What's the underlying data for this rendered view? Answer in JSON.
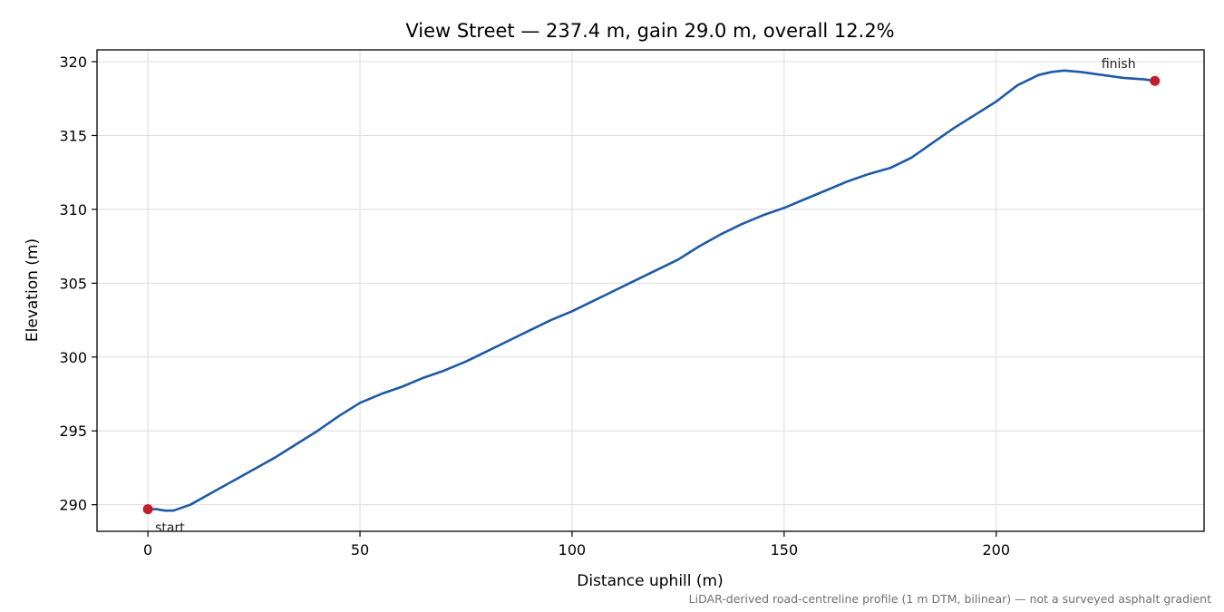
{
  "chart_data": {
    "type": "line",
    "title": "View Street — 237.4 m, gain 29.0 m, overall 12.2%",
    "xlabel": "Distance uphill (m)",
    "ylabel": "Elevation (m)",
    "footnote": "LiDAR-derived road-centreline profile (1 m DTM, bilinear) — not a surveyed asphalt gradient",
    "xlim": [
      -12,
      249
    ],
    "ylim": [
      288.2,
      320.8
    ],
    "xticks": [
      0,
      50,
      100,
      150,
      200
    ],
    "yticks": [
      290,
      295,
      300,
      305,
      310,
      315,
      320
    ],
    "grid": true,
    "line_color": "#1f5aa6",
    "marker_color": "#c0202b",
    "series": [
      {
        "x": [
          0,
          2,
          4,
          6,
          8,
          10,
          15,
          20,
          25,
          30,
          35,
          40,
          45,
          50,
          55,
          60,
          65,
          70,
          75,
          80,
          85,
          90,
          95,
          100,
          105,
          110,
          115,
          120,
          125,
          130,
          135,
          140,
          145,
          150,
          155,
          160,
          165,
          170,
          175,
          180,
          185,
          190,
          195,
          200,
          205,
          210,
          213,
          216,
          220,
          225,
          230,
          235,
          237.4
        ],
        "y": [
          289.7,
          289.7,
          289.6,
          289.6,
          289.8,
          290.0,
          290.8,
          291.6,
          292.4,
          293.2,
          294.1,
          295.0,
          296.0,
          296.9,
          297.5,
          298.0,
          298.6,
          299.1,
          299.7,
          300.4,
          301.1,
          301.8,
          302.5,
          303.1,
          303.8,
          304.5,
          305.2,
          305.9,
          306.6,
          307.5,
          308.3,
          309.0,
          309.6,
          310.1,
          310.7,
          311.3,
          311.9,
          312.4,
          312.8,
          313.5,
          314.5,
          315.5,
          316.4,
          317.3,
          318.4,
          319.1,
          319.3,
          319.4,
          319.3,
          319.1,
          318.9,
          318.8,
          318.7
        ]
      }
    ],
    "annotations": [
      {
        "label": "start",
        "x": 0,
        "y": 289.7
      },
      {
        "label": "finish",
        "x": 237.4,
        "y": 318.7
      }
    ]
  }
}
